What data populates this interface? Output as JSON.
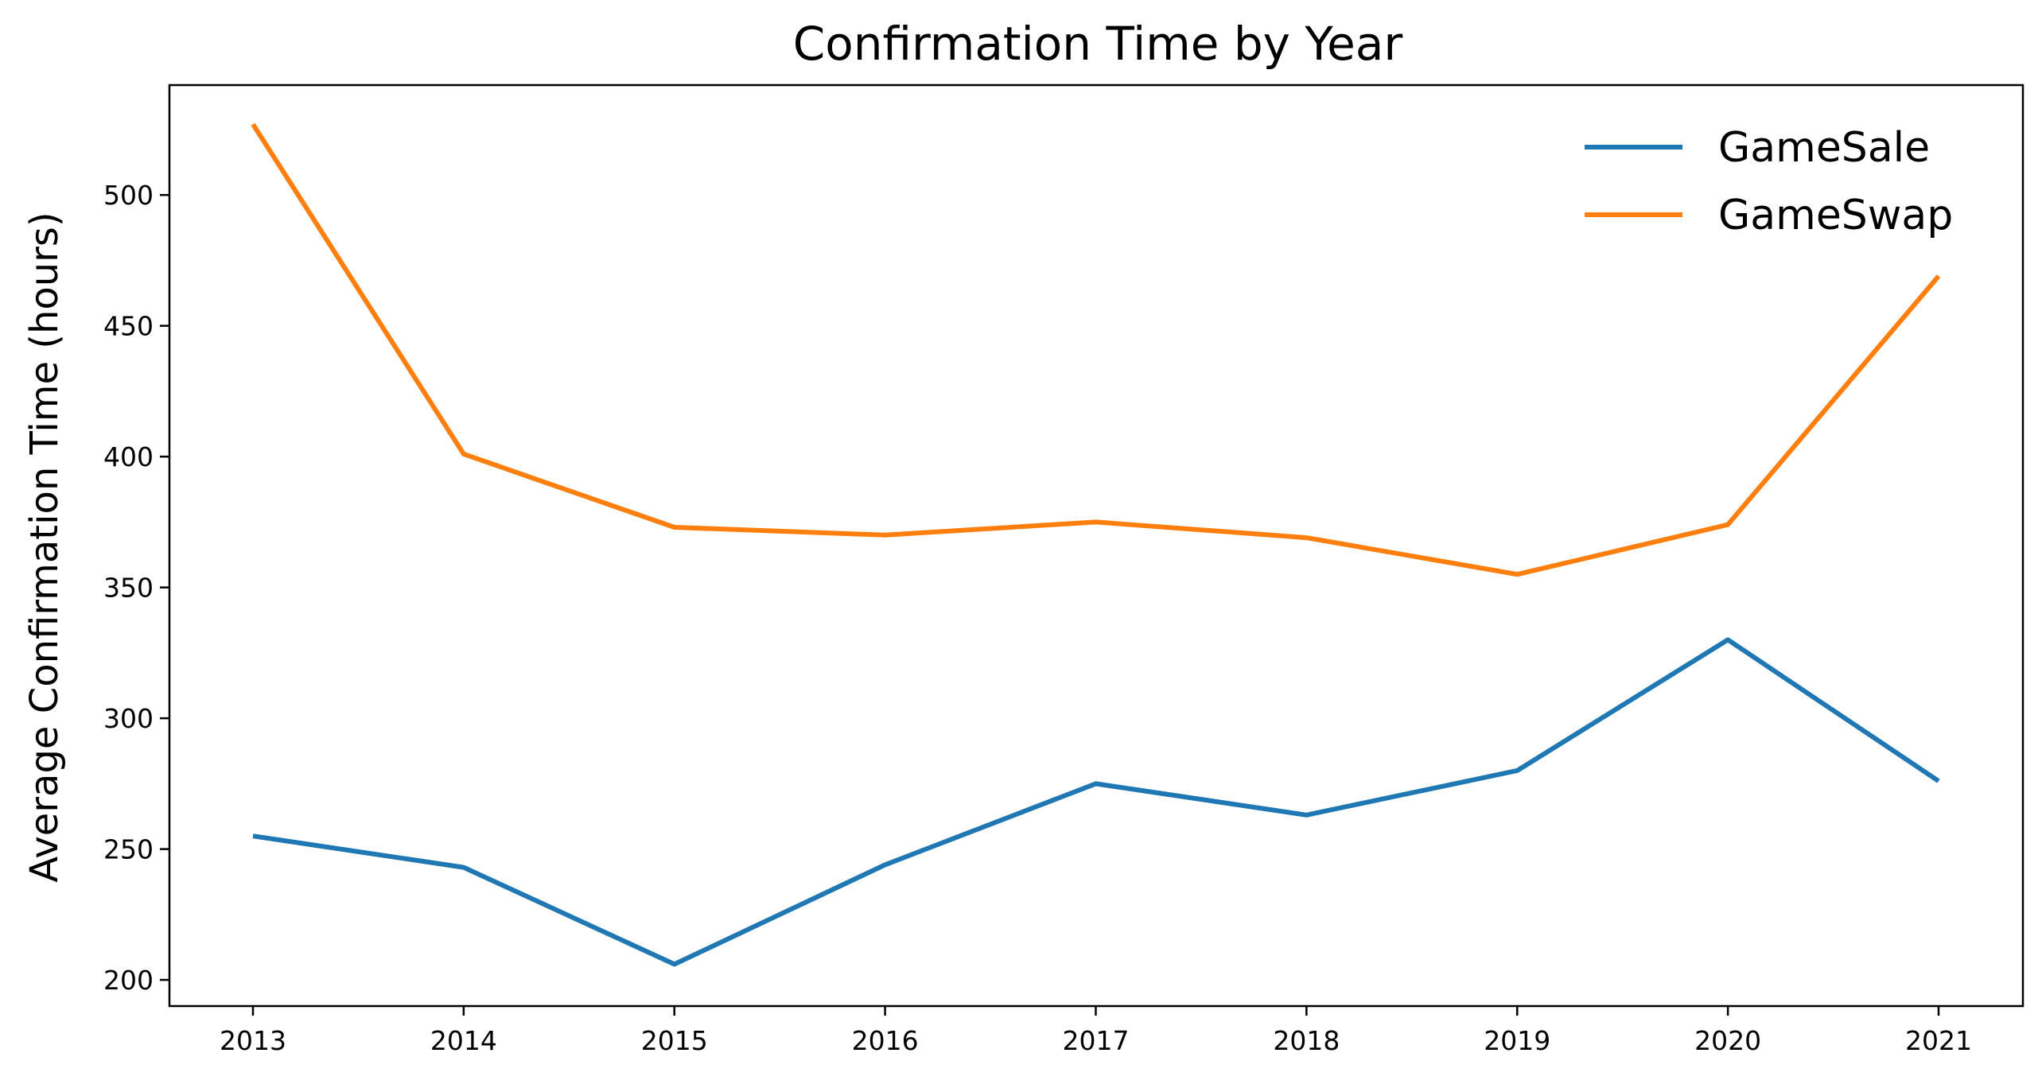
{
  "chart_data": {
    "type": "line",
    "title": "Confirmation Time by Year",
    "xlabel": "",
    "ylabel": "Average Confirmation Time (hours)",
    "x": [
      "2013",
      "2014",
      "2015",
      "2016",
      "2017",
      "2018",
      "2019",
      "2020",
      "2021"
    ],
    "yticks": [
      200,
      250,
      300,
      350,
      400,
      450,
      500
    ],
    "ylim": [
      190,
      542
    ],
    "grid": false,
    "legend_position": "top-right",
    "series": [
      {
        "name": "GameSale",
        "color": "#1f77b4",
        "values": [
          255,
          243,
          206,
          244,
          275,
          263,
          280,
          330,
          276
        ]
      },
      {
        "name": "GameSwap",
        "color": "#ff7f0e",
        "values": [
          527,
          401,
          373,
          370,
          375,
          369,
          355,
          374,
          469
        ]
      }
    ]
  }
}
